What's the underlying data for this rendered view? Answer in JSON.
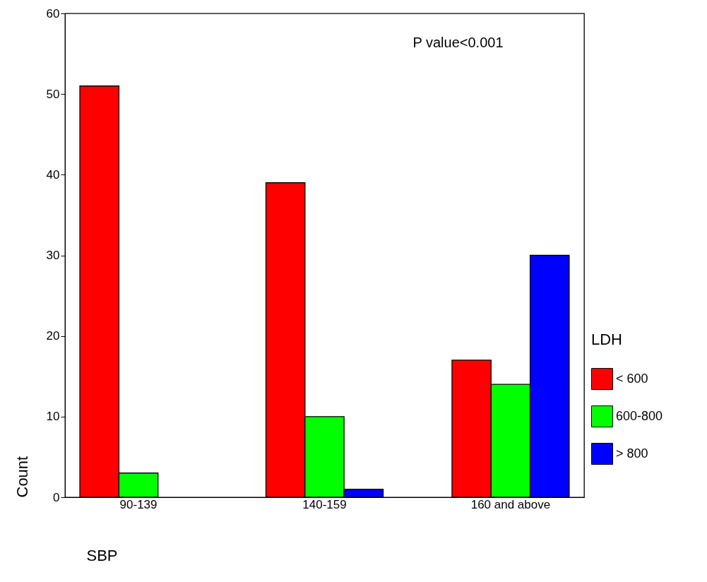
{
  "chart_data": {
    "type": "bar",
    "xlabel": "SBP",
    "ylabel": "Count",
    "legend_title": "LDH",
    "categories": [
      "90-139",
      "140-159",
      "160 and above"
    ],
    "series": [
      {
        "name": "< 600",
        "color": "#ff0000",
        "values": [
          51,
          39,
          17
        ]
      },
      {
        "name": "600-800",
        "color": "#00ff00",
        "values": [
          3,
          10,
          14
        ]
      },
      {
        "name": "> 800",
        "color": "#0000ff",
        "values": [
          null,
          1,
          30
        ]
      }
    ],
    "ylim": [
      0,
      60
    ],
    "yticks": [
      0,
      10,
      20,
      30,
      40,
      50,
      60
    ],
    "grid": false,
    "legend": "right",
    "annotations": [
      "P value<0.001"
    ]
  }
}
